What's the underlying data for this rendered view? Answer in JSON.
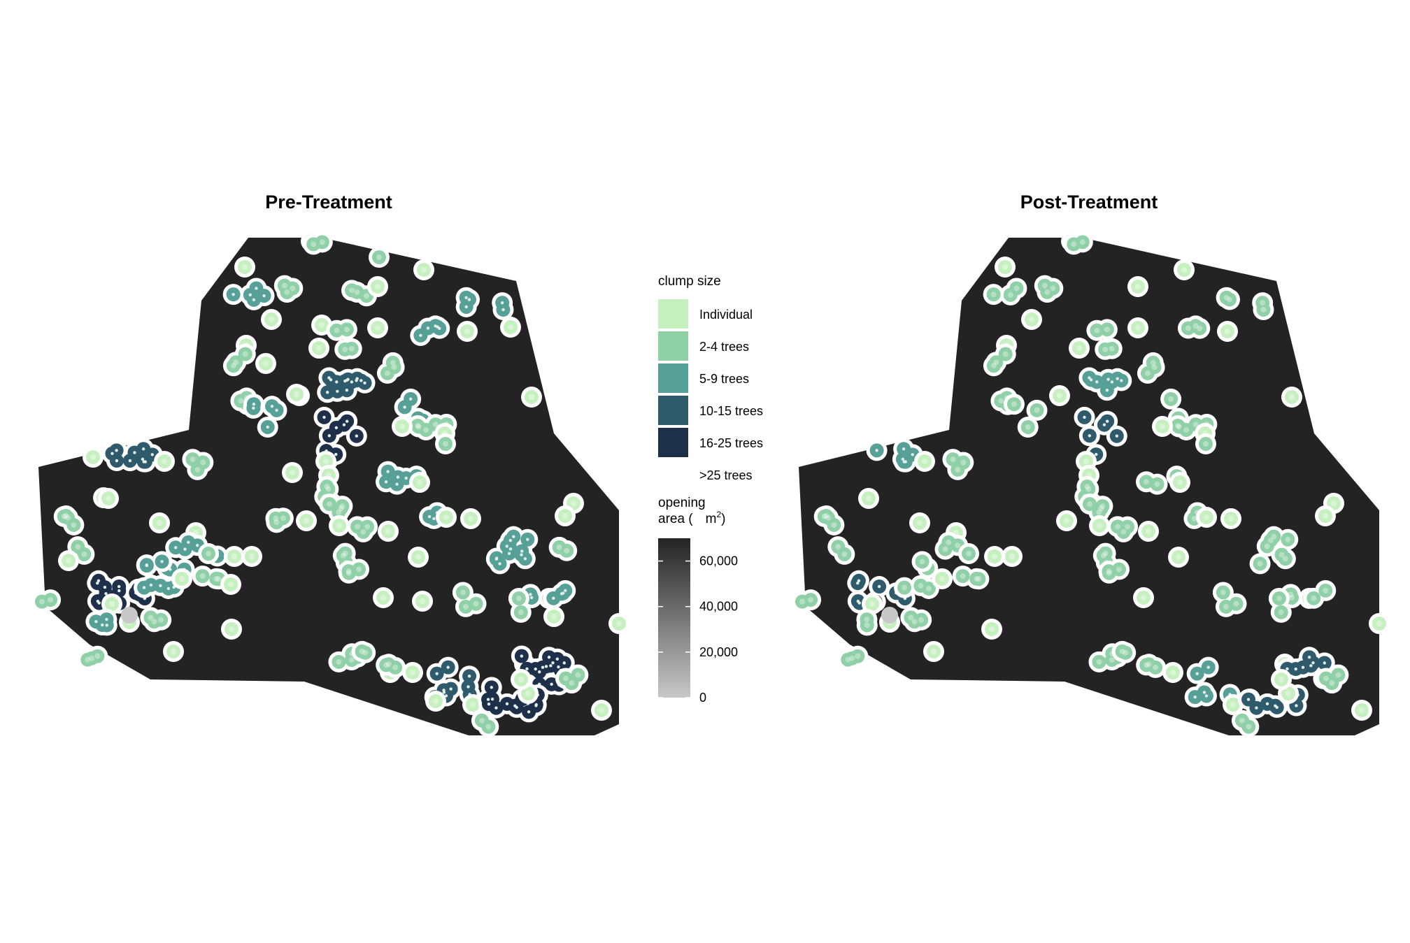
{
  "figure": {
    "panels": [
      {
        "id": "pre",
        "title": "Pre-Treatment"
      },
      {
        "id": "post",
        "title": "Post-Treatment"
      }
    ]
  },
  "legend": {
    "clump_title": "clump size",
    "clump_items": [
      {
        "label": "Individual",
        "color": "#c7f0c0"
      },
      {
        "label": "2-4 trees",
        "color": "#8fd0a6"
      },
      {
        "label": "5-9 trees",
        "color": "#56a097"
      },
      {
        "label": "10-15 trees",
        "color": "#2f5a6c"
      },
      {
        "label": "16-25 trees",
        "color": "#1e2f4a"
      },
      {
        "label": ">25 trees",
        "color": "#ffffff"
      }
    ],
    "opening_title_line1": "opening",
    "opening_title_line2": "area (",
    "opening_unit": "m",
    "opening_unit_sup": "2",
    "opening_close": ")",
    "opening_ticks": [
      {
        "label": "60,000",
        "value": 60000
      },
      {
        "label": "40,000",
        "value": 40000
      },
      {
        "label": "20,000",
        "value": 20000
      },
      {
        "label": "0",
        "value": 0
      }
    ],
    "opening_range": [
      0,
      70000
    ],
    "opening_colors": {
      "low": "#c8c8c8",
      "high": "#232323"
    }
  },
  "map_style": {
    "background_color": "#232323",
    "buffer_color": "#ffffff",
    "small_opening_color": "#c8c8c8"
  }
}
